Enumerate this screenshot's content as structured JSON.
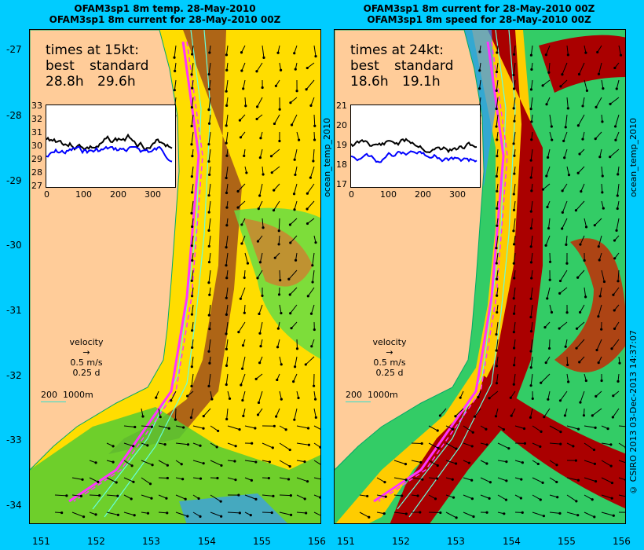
{
  "left": {
    "title_line1": "OFAM3sp1 8m temp. 28-May-2010",
    "title_line2": "OFAM3sp1 8m current for 28-May-2010 00Z",
    "times_heading": "times at 15kt:",
    "best_label": "best",
    "standard_label": "standard",
    "best_value": "28.8h",
    "standard_value": "29.6h",
    "inset_yticks": [
      "33",
      "32",
      "31",
      "30",
      "29",
      "28",
      "27"
    ],
    "inset_xticks": [
      "0",
      "100",
      "200",
      "300"
    ]
  },
  "right": {
    "title_line1": "OFAM3sp1 8m current for 28-May-2010 00Z",
    "title_line2": "OFAM3sp1 8m speed for 28-May-2010 00Z",
    "times_heading": "times at 24kt:",
    "best_label": "best",
    "standard_label": "standard",
    "best_value": "18.6h",
    "standard_value": "19.1h",
    "inset_yticks": [
      "21",
      "20",
      "19",
      "18",
      "17"
    ],
    "inset_xticks": [
      "0",
      "100",
      "200",
      "300"
    ]
  },
  "lat_ticks": [
    "-27",
    "-28",
    "-29",
    "-30",
    "-31",
    "-32",
    "-33",
    "-34"
  ],
  "lon_ticks": [
    "151",
    "152",
    "153",
    "154",
    "155",
    "156"
  ],
  "velocity_legend": {
    "label": "velocity",
    "speed": "0.5 m/s",
    "duration": "0.25 d"
  },
  "depth_legend": "200  1000m",
  "side_label_left": "ocean_temp_2010",
  "side_label_right": "ocean_temp_2010",
  "credit": "© CSIRO 2013  03-Dec-2013 14:37:07",
  "colors": {
    "background": "#00ccff",
    "land": "#ffcc99",
    "route": "#ff33ff",
    "contour": "#66ffdd",
    "best_line": "#000000",
    "standard_line": "#0000ff"
  }
}
